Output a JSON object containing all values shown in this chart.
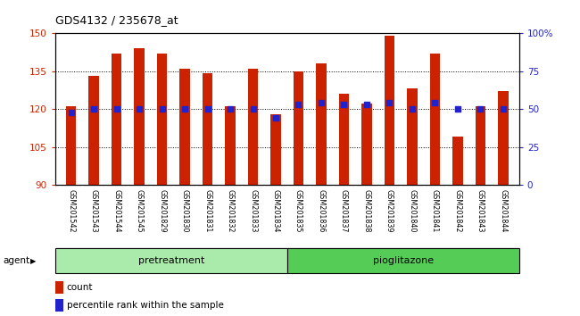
{
  "title": "GDS4132 / 235678_at",
  "samples": [
    "GSM201542",
    "GSM201543",
    "GSM201544",
    "GSM201545",
    "GSM201829",
    "GSM201830",
    "GSM201831",
    "GSM201832",
    "GSM201833",
    "GSM201834",
    "GSM201835",
    "GSM201836",
    "GSM201837",
    "GSM201838",
    "GSM201839",
    "GSM201840",
    "GSM201841",
    "GSM201842",
    "GSM201843",
    "GSM201844"
  ],
  "counts": [
    121,
    133,
    142,
    144,
    142,
    136,
    134,
    121,
    136,
    118,
    135,
    138,
    126,
    122,
    149,
    128,
    142,
    109,
    121,
    127
  ],
  "percentiles": [
    48,
    50,
    50,
    50,
    50,
    50,
    50,
    50,
    50,
    44,
    53,
    54,
    53,
    53,
    54,
    50,
    54,
    50,
    50,
    50
  ],
  "pretreatment_count": 10,
  "pioglitazone_count": 10,
  "ylim_left": [
    90,
    150
  ],
  "ylim_right": [
    0,
    100
  ],
  "yticks_left": [
    90,
    105,
    120,
    135,
    150
  ],
  "yticks_right": [
    0,
    25,
    50,
    75,
    100
  ],
  "yticklabels_right": [
    "0",
    "25",
    "50",
    "75",
    "100%"
  ],
  "bar_color": "#cc2200",
  "dot_color": "#2222cc",
  "bar_width": 0.45,
  "bg_color": "#cccccc",
  "pretreat_color": "#aaeaaa",
  "pioglit_color": "#55cc55",
  "label_count": "count",
  "label_percentile": "percentile rank within the sample",
  "agent_label": "agent"
}
